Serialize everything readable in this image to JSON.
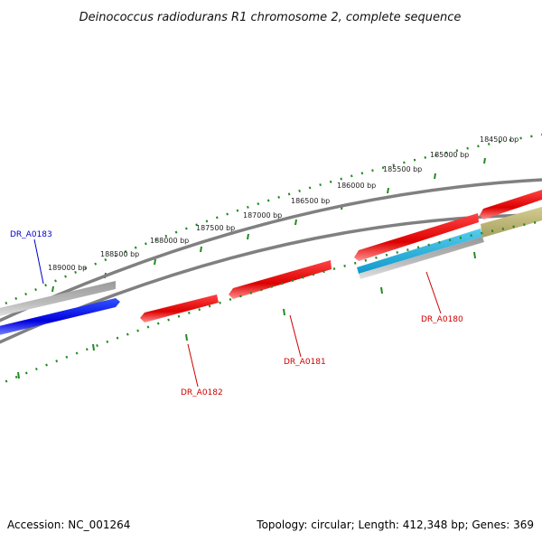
{
  "title": "Deinococcus radiodurans R1 chromosome 2, complete sequence",
  "accession": "Accession: NC_001264",
  "summary": "Topology: circular; Length: 412,348 bp; Genes: 369",
  "tick_labels": [
    "189000 bp",
    "188500 bp",
    "188000 bp",
    "187500 bp",
    "187000 bp",
    "186500 bp",
    "186000 bp",
    "185500 bp",
    "185000 bp",
    "184500 bp"
  ],
  "gene_labels": {
    "a0183": "DR_A0183",
    "a0182": "DR_A0182",
    "a0181": "DR_A0181",
    "a0180": "DR_A0180"
  },
  "colors": {
    "forward_gene": "#0000dd",
    "reverse_gene": "#ee0000",
    "gene_light_blue": "#22aadd",
    "gene_gray": "#bbbbbb",
    "gene_olive": "#b8b070",
    "backbone": "#808080",
    "tick": "#228b22",
    "label_forward": "#0000cc",
    "label_reverse": "#cc0000"
  }
}
